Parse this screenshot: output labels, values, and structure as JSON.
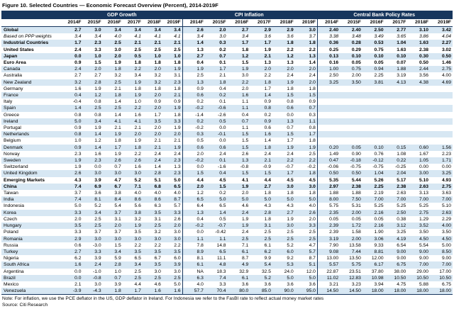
{
  "title": "Figure 10. Selected Countries — Economic Forecast Overview (Percent), 2014-2019F",
  "note": "Note: For inflation, we use the PCE deflator in the US, GDP deflator in Ireland. For Indonesia we refer to the FasBI rate to reflect actual money market rates",
  "source": "Source: Citi Research",
  "colors": {
    "header_bg": "#17365D",
    "header_text": "#FFFFFF",
    "row_stripe": "#D7E7F3",
    "border": "#17365D"
  },
  "chart_data": {
    "type": "table",
    "title": "Figure 10. Selected Countries — Economic Forecast Overview (Percent), 2014-2019F",
    "column_groups": [
      "GDP Growth",
      "CPI Inflation",
      "Central Bank Policy Rates"
    ],
    "years": [
      "2014F",
      "2015F",
      "2016F",
      "2017F",
      "2018F",
      "2019F"
    ],
    "rows": [
      {
        "name": "Global",
        "style": "b",
        "gdp": [
          "2.7",
          "3.0",
          "3.4",
          "3.4",
          "3.4",
          "3.4"
        ],
        "cpi": [
          "2.6",
          "2.0",
          "2.7",
          "2.9",
          "2.9",
          "3.0"
        ],
        "cbr": [
          "2.40",
          "2.40",
          "2.50",
          "2.77",
          "3.10",
          "3.42"
        ]
      },
      {
        "name": "Based on PPP weights",
        "style": "i",
        "gdp": [
          "3.4",
          "3.4",
          "4.0",
          "4.1",
          "4.1",
          "4.1"
        ],
        "cpi": [
          "3.4",
          "3.0",
          "3.4",
          "3.6",
          "3.6",
          "3.7"
        ],
        "cbr": [
          "3.38",
          "3.48",
          "3.49",
          "3.65",
          "3.86",
          "4.04"
        ]
      },
      {
        "name": "Industrial Countries",
        "style": "b",
        "gdp": [
          "1.7",
          "2.3",
          "2.5",
          "2.1",
          "2.1",
          "2.1"
        ],
        "cpi": [
          "1.4",
          "0.3",
          "1.7",
          "1.7",
          "1.8",
          "1.8"
        ],
        "cbr": [
          "0.36",
          "0.28",
          "0.53",
          "1.04",
          "1.63",
          "2.27"
        ]
      },
      {
        "name": "United States",
        "style": "b",
        "gdp": [
          "2.4",
          "3.3",
          "3.0",
          "2.5",
          "2.5",
          "2.5"
        ],
        "cpi": [
          "1.3",
          "0.2",
          "1.8",
          "1.9",
          "2.2",
          "2.2"
        ],
        "cbr": [
          "0.25",
          "0.29",
          "0.75",
          "1.63",
          "2.38",
          "3.02"
        ]
      },
      {
        "name": "Japan",
        "style": "b",
        "gdp": [
          "0.0",
          "1.0",
          "2.0",
          "0.5",
          "1.0",
          "1.0"
        ],
        "cpi": [
          "2.7",
          "0.7",
          "1.2",
          "2.1",
          "1.2",
          "1.3"
        ],
        "cbr": [
          "0.13",
          "0.10",
          "0.10",
          "0.10",
          "0.30",
          "0.50"
        ]
      },
      {
        "name": "Euro Area",
        "style": "b",
        "gdp": [
          "0.9",
          "1.5",
          "1.9",
          "1.8",
          "1.8",
          "1.8"
        ],
        "cpi": [
          "0.4",
          "0.1",
          "1.5",
          "1.3",
          "1.3",
          "1.4"
        ],
        "cbr": [
          "0.16",
          "0.05",
          "0.05",
          "0.07",
          "0.50",
          "1.46"
        ]
      },
      {
        "name": "Canada",
        "style": "n",
        "gdp": [
          "2.4",
          "2.0",
          "1.8",
          "2.2",
          "2.0",
          "1.9"
        ],
        "cpi": [
          "1.9",
          "1.7",
          "1.9",
          "2.0",
          "2.0",
          "2.0"
        ],
        "cbr": [
          "1.00",
          "0.75",
          "0.94",
          "1.88",
          "2.44",
          "2.75"
        ]
      },
      {
        "name": "Australia",
        "style": "n",
        "gdp": [
          "2.7",
          "2.7",
          "3.2",
          "3.4",
          "3.2",
          "3.1"
        ],
        "cpi": [
          "2.5",
          "2.1",
          "3.0",
          "2.2",
          "2.4",
          "2.4"
        ],
        "cbr": [
          "2.50",
          "2.00",
          "2.25",
          "3.19",
          "3.56",
          "4.00"
        ]
      },
      {
        "name": "New Zealand",
        "style": "n",
        "gdp": [
          "3.2",
          "2.8",
          "2.5",
          "1.9",
          "3.2",
          "2.3"
        ],
        "cpi": [
          "1.3",
          "1.8",
          "2.2",
          "1.8",
          "1.9",
          "2.0"
        ],
        "cbr": [
          "3.25",
          "3.50",
          "3.81",
          "4.13",
          "4.38",
          "4.69"
        ]
      },
      {
        "name": "Germany",
        "style": "n",
        "gdp": [
          "1.6",
          "1.9",
          "2.1",
          "1.8",
          "1.8",
          "1.8"
        ],
        "cpi": [
          "0.9",
          "0.4",
          "2.0",
          "1.7",
          "1.8",
          "1.8"
        ],
        "cbr": [
          "",
          "",
          "",
          "",
          "",
          ""
        ]
      },
      {
        "name": "France",
        "style": "n",
        "gdp": [
          "0.4",
          "1.2",
          "1.8",
          "1.9",
          "2.0",
          "2.1"
        ],
        "cpi": [
          "0.6",
          "0.2",
          "1.6",
          "1.4",
          "1.5",
          "1.5"
        ],
        "cbr": [
          "",
          "",
          "",
          "",
          "",
          ""
        ]
      },
      {
        "name": "Italy",
        "style": "n",
        "gdp": [
          "-0.4",
          "0.8",
          "1.4",
          "1.0",
          "0.9",
          "0.9"
        ],
        "cpi": [
          "0.2",
          "0.1",
          "1.1",
          "0.9",
          "0.8",
          "0.9"
        ],
        "cbr": [
          "",
          "",
          "",
          "",
          "",
          ""
        ]
      },
      {
        "name": "Spain",
        "style": "n",
        "gdp": [
          "1.4",
          "2.5",
          "2.5",
          "2.2",
          "2.0",
          "1.9"
        ],
        "cpi": [
          "-0.2",
          "-0.6",
          "1.1",
          "0.8",
          "0.6",
          "0.7"
        ],
        "cbr": [
          "",
          "",
          "",
          "",
          "",
          ""
        ]
      },
      {
        "name": "Greece",
        "style": "n",
        "gdp": [
          "0.8",
          "0.8",
          "1.4",
          "1.6",
          "1.7",
          "1.8"
        ],
        "cpi": [
          "-1.4",
          "-2.6",
          "0.4",
          "0.2",
          "0.0",
          "0.3"
        ],
        "cbr": [
          "",
          "",
          "",
          "",
          "",
          ""
        ]
      },
      {
        "name": "Ireland",
        "style": "n",
        "gdp": [
          "5.0",
          "3.4",
          "4.1",
          "4.1",
          "3.5",
          "3.3"
        ],
        "cpi": [
          "0.2",
          "0.5",
          "0.7",
          "0.9",
          "1.3",
          "1.1"
        ],
        "cbr": [
          "",
          "",
          "",
          "",
          "",
          ""
        ]
      },
      {
        "name": "Portugal",
        "style": "n",
        "gdp": [
          "0.9",
          "1.9",
          "2.1",
          "2.1",
          "2.0",
          "1.9"
        ],
        "cpi": [
          "-0.2",
          "0.0",
          "1.1",
          "0.6",
          "0.7",
          "0.8"
        ],
        "cbr": [
          "",
          "",
          "",
          "",
          "",
          ""
        ]
      },
      {
        "name": "Netherlands",
        "style": "n",
        "gdp": [
          "0.8",
          "1.4",
          "1.9",
          "2.0",
          "2.0",
          "2.0"
        ],
        "cpi": [
          "0.3",
          "-0.1",
          "1.5",
          "1.6",
          "1.5",
          "1.7"
        ],
        "cbr": [
          "",
          "",
          "",
          "",
          "",
          ""
        ]
      },
      {
        "name": "Belgium",
        "style": "n",
        "gdp": [
          "1.0",
          "1.2",
          "1.8",
          "1.9",
          "2.1",
          "2.1"
        ],
        "cpi": [
          "0.5",
          "0.0",
          "1.5",
          "1.4",
          "1.7",
          "1.8"
        ],
        "cbr": [
          "",
          "",
          "",
          "",
          "",
          ""
        ]
      },
      {
        "name": "Denmark",
        "style": "n",
        "gdp": [
          "0.9",
          "1.4",
          "1.7",
          "1.8",
          "2.1",
          "1.9"
        ],
        "cpi": [
          "0.6",
          "0.6",
          "1.5",
          "1.8",
          "1.9",
          "1.9"
        ],
        "cbr": [
          "0.20",
          "0.05",
          "0.10",
          "0.15",
          "0.60",
          "1.56"
        ]
      },
      {
        "name": "Norway",
        "style": "n",
        "gdp": [
          "2.3",
          "1.6",
          "1.9",
          "2.2",
          "2.4",
          "2.4"
        ],
        "cpi": [
          "2.0",
          "2.4",
          "2.6",
          "2.4",
          "2.4",
          "2.5"
        ],
        "cbr": [
          "1.49",
          "0.90",
          "0.76",
          "1.08",
          "1.67",
          "2.23"
        ]
      },
      {
        "name": "Sweden",
        "style": "n",
        "gdp": [
          "1.9",
          "2.3",
          "2.6",
          "2.6",
          "2.4",
          "2.3"
        ],
        "cpi": [
          "-0.2",
          "0.1",
          "1.3",
          "2.1",
          "2.2",
          "2.2"
        ],
        "cbr": [
          "0.47",
          "-0.18",
          "-0.12",
          "0.22",
          "1.05",
          "1.71"
        ]
      },
      {
        "name": "Switzerland",
        "style": "n",
        "gdp": [
          "1.9",
          "0.0",
          "0.7",
          "1.6",
          "1.4",
          "1.3"
        ],
        "cpi": [
          "0.0",
          "-1.6",
          "-0.8",
          "-0.9",
          "-0.7",
          "-0.2"
        ],
        "cbr": [
          "-0.06",
          "-0.75",
          "-0.75",
          "-0.25",
          "0.00",
          "0.00"
        ]
      },
      {
        "name": "United Kingdom",
        "style": "n",
        "gdp": [
          "2.6",
          "3.0",
          "3.0",
          "3.0",
          "2.8",
          "2.3"
        ],
        "cpi": [
          "1.5",
          "0.4",
          "1.5",
          "1.5",
          "1.7",
          "1.8"
        ],
        "cbr": [
          "0.50",
          "0.50",
          "1.04",
          "2.04",
          "3.00",
          "3.25"
        ]
      },
      {
        "name": "Emerging Markets",
        "style": "b",
        "gdp": [
          "4.3",
          "3.9",
          "4.7",
          "5.2",
          "5.1",
          "5.0"
        ],
        "cpi": [
          "4.4",
          "4.5",
          "4.1",
          "4.4",
          "4.5",
          "4.5"
        ],
        "cbr": [
          "5.35",
          "5.44",
          "5.26",
          "5.17",
          "5.10",
          "4.93"
        ]
      },
      {
        "name": "China",
        "style": "b",
        "gdp": [
          "7.4",
          "6.9",
          "6.7",
          "7.1",
          "6.8",
          "6.5"
        ],
        "cpi": [
          "2.0",
          "1.5",
          "1.9",
          "2.7",
          "3.0",
          "3.0"
        ],
        "cbr": [
          "2.97",
          "2.38",
          "2.25",
          "2.38",
          "2.63",
          "2.75"
        ]
      },
      {
        "name": "Taiwan",
        "style": "n",
        "gdp": [
          "3.7",
          "3.6",
          "3.8",
          "4.0",
          "4.0",
          "4.0"
        ],
        "cpi": [
          "1.2",
          "0.2",
          "2.0",
          "1.8",
          "1.8",
          "1.8"
        ],
        "cbr": [
          "1.88",
          "1.88",
          "2.19",
          "2.63",
          "3.13",
          "3.63"
        ]
      },
      {
        "name": "India",
        "style": "n",
        "gdp": [
          "7.4",
          "8.1",
          "8.4",
          "8.6",
          "8.6",
          "8.7"
        ],
        "cpi": [
          "6.5",
          "5.0",
          "5.0",
          "5.0",
          "5.0",
          "5.0"
        ],
        "cbr": [
          "8.00",
          "7.50",
          "7.00",
          "7.00",
          "7.00",
          "7.00"
        ]
      },
      {
        "name": "Indonesia",
        "style": "n",
        "gdp": [
          "5.0",
          "5.2",
          "5.4",
          "5.6",
          "6.3",
          "5.7"
        ],
        "cpi": [
          "6.4",
          "6.5",
          "4.6",
          "4.3",
          "4.3",
          "4.0"
        ],
        "cbr": [
          "5.75",
          "5.31",
          "5.25",
          "5.25",
          "5.25",
          "5.10"
        ]
      },
      {
        "name": "Korea",
        "style": "n",
        "gdp": [
          "3.3",
          "3.4",
          "3.7",
          "3.8",
          "3.5",
          "3.3"
        ],
        "cpi": [
          "1.3",
          "1.4",
          "2.4",
          "2.8",
          "2.7",
          "2.6"
        ],
        "cbr": [
          "2.35",
          "2.00",
          "2.16",
          "2.50",
          "2.75",
          "2.63"
        ]
      },
      {
        "name": "Czech",
        "style": "n",
        "gdp": [
          "2.0",
          "2.5",
          "3.1",
          "3.2",
          "3.1",
          "2.6"
        ],
        "cpi": [
          "0.4",
          "0.5",
          "1.9",
          "1.8",
          "1.9",
          "2.0"
        ],
        "cbr": [
          "0.05",
          "0.05",
          "0.05",
          "0.38",
          "1.29",
          "2.29"
        ]
      },
      {
        "name": "Hungary",
        "style": "n",
        "gdp": [
          "3.5",
          "2.5",
          "2.0",
          "1.9",
          "2.5",
          "2.0"
        ],
        "cpi": [
          "-0.2",
          "-0.7",
          "1.9",
          "3.1",
          "3.0",
          "3.3"
        ],
        "cbr": [
          "2.39",
          "1.72",
          "2.16",
          "3.12",
          "3.52",
          "4.00"
        ]
      },
      {
        "name": "Poland",
        "style": "n",
        "gdp": [
          "3.3",
          "3.7",
          "3.7",
          "3.5",
          "3.2",
          "3.0"
        ],
        "cpi": [
          "0.0",
          "-0.42",
          "2.4",
          "2.5",
          "2.5",
          "2.5"
        ],
        "cbr": [
          "2.39",
          "1.58",
          "1.90",
          "3.25",
          "3.50",
          "3.50"
        ]
      },
      {
        "name": "Romania",
        "style": "n",
        "gdp": [
          "2.9",
          "3.0",
          "3.0",
          "3.0",
          "3.0",
          "3.0"
        ],
        "cpi": [
          "1.1",
          "1.1",
          "2.5",
          "2.5",
          "2.5",
          "2.5"
        ],
        "cbr": [
          "3.19",
          "2.00",
          "3.06",
          "4.19",
          "4.50",
          "4.50"
        ]
      },
      {
        "name": "Russia",
        "style": "n",
        "gdp": [
          "0.6",
          "-3.0",
          "1.5",
          "2.2",
          "2.2",
          "2.2"
        ],
        "cpi": [
          "7.8",
          "14.8",
          "7.1",
          "6.1",
          "5.2",
          "4.7"
        ],
        "cbr": [
          "7.90",
          "13.58",
          "9.33",
          "6.54",
          "5.54",
          "5.00"
        ]
      },
      {
        "name": "Turkey",
        "style": "n",
        "gdp": [
          "2.7",
          "3.3",
          "3.4",
          "3.5",
          "3.5",
          "3.5"
        ],
        "cpi": [
          "8.9",
          "6.5",
          "6.1",
          "6.2",
          "6.0",
          "5.7"
        ],
        "cbr": [
          "9.08",
          "7.44",
          "8.81",
          "9.00",
          "9.00",
          "8.50"
        ]
      },
      {
        "name": "Nigeria",
        "style": "n",
        "gdp": [
          "6.2",
          "3.9",
          "5.9",
          "6.5",
          "6.7",
          "6.0"
        ],
        "cpi": [
          "8.1",
          "11.1",
          "8.7",
          "9.9",
          "9.2",
          "8.7"
        ],
        "cbr": [
          "13.00",
          "13.50",
          "12.00",
          "9.00",
          "9.00",
          "9.00"
        ]
      },
      {
        "name": "South Africa",
        "style": "n",
        "gdp": [
          "1.6",
          "2.4",
          "2.8",
          "3.4",
          "3.5",
          "3.9"
        ],
        "cpi": [
          "6.1",
          "4.8",
          "4.9",
          "5.4",
          "5.3",
          "5.1"
        ],
        "cbr": [
          "5.57",
          "5.75",
          "6.17",
          "6.75",
          "7.00",
          "7.00"
        ]
      },
      {
        "name": "Argentina",
        "style": "n",
        "gdp": [
          "0.0",
          "-1.0",
          "1.0",
          "2.5",
          "3.0",
          "3.0"
        ],
        "cpi": [
          "NA",
          "18.3",
          "32.9",
          "32.5",
          "24.0",
          "12.0"
        ],
        "cbr": [
          "22.87",
          "23.51",
          "37.80",
          "38.00",
          "29.00",
          "17.00"
        ]
      },
      {
        "name": "Brazil",
        "style": "n",
        "gdp": [
          "0.0",
          "-0.8",
          "0.7",
          "2.5",
          "2.5",
          "2.5"
        ],
        "cpi": [
          "6.3",
          "7.4",
          "6.1",
          "5.2",
          "5.0",
          "5.0"
        ],
        "cbr": [
          "11.02",
          "12.83",
          "10.98",
          "10.50",
          "10.50",
          "10.50"
        ]
      },
      {
        "name": "Mexico",
        "style": "n",
        "gdp": [
          "2.1",
          "3.0",
          "3.9",
          "4.4",
          "4.6",
          "5.0"
        ],
        "cpi": [
          "4.0",
          "3.3",
          "3.6",
          "3.6",
          "3.6",
          "3.6"
        ],
        "cbr": [
          "3.21",
          "3.23",
          "3.94",
          "4.75",
          "5.88",
          "6.75"
        ]
      },
      {
        "name": "Venezuela",
        "style": "n",
        "gdp": [
          "-3.9",
          "-4.3",
          "1.8",
          "1.7",
          "1.6",
          "1.6"
        ],
        "cpi": [
          "57.7",
          "70.4",
          "80.0",
          "85.0",
          "90.0",
          "95.0"
        ],
        "cbr": [
          "14.50",
          "14.50",
          "18.00",
          "18.00",
          "18.00",
          "18.00"
        ]
      }
    ]
  }
}
